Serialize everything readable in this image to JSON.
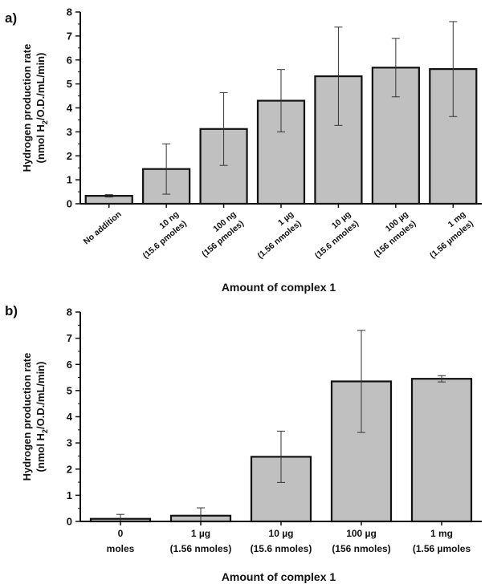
{
  "figure": {
    "panels": [
      "a)",
      "b)"
    ]
  },
  "chart_data": [
    {
      "type": "bar",
      "panel": "a)",
      "categories": [
        [
          "No addition"
        ],
        [
          "10 ng",
          "(15.6 pmoles)"
        ],
        [
          "100 ng",
          "(156 pmoles)"
        ],
        [
          "1 µg",
          "(1.56 nmoles)"
        ],
        [
          "10 µg",
          "(15.6 nmoles)"
        ],
        [
          "100 µg",
          "(156 nmoles)"
        ],
        [
          "1 mg",
          "(1.56 µmoles)"
        ]
      ],
      "values": [
        0.33,
        1.45,
        3.12,
        4.3,
        5.32,
        5.68,
        5.62
      ],
      "errors": [
        0.05,
        1.05,
        1.52,
        1.3,
        2.05,
        1.22,
        1.98
      ],
      "xlabel": "Amount of complex 1",
      "ylabel_line1": "Hydrogen production rate",
      "ylabel_line2_pre": "(nmol H",
      "ylabel_sub": "2",
      "ylabel_line2_post": "/O.D./mL/min)",
      "ylim": [
        0,
        8
      ],
      "yticks": [
        0,
        1,
        2,
        3,
        4,
        5,
        6,
        7,
        8
      ],
      "bar_color": "#c0c0c0",
      "grid": false
    },
    {
      "type": "bar",
      "panel": "b)",
      "categories": [
        [
          "0",
          "moles"
        ],
        [
          "1 µg",
          "(1.56 nmoles)"
        ],
        [
          "10 µg",
          "(15.6 nmoles)"
        ],
        [
          "100 µg",
          "(156 nmoles)"
        ],
        [
          "1 mg",
          "(1.56 µmoles"
        ]
      ],
      "values": [
        0.1,
        0.22,
        2.47,
        5.35,
        5.45
      ],
      "errors": [
        0.17,
        0.3,
        0.98,
        1.95,
        0.12
      ],
      "xlabel": "Amount of complex 1",
      "ylabel_line1": "Hydrogen production rate",
      "ylabel_line2_pre": "(nmol H",
      "ylabel_sub": "2",
      "ylabel_line2_post": "/O.D./mL/min)",
      "ylim": [
        0,
        8
      ],
      "yticks": [
        0,
        1,
        2,
        3,
        4,
        5,
        6,
        7,
        8
      ],
      "bar_color": "#c0c0c0",
      "grid": false
    }
  ]
}
